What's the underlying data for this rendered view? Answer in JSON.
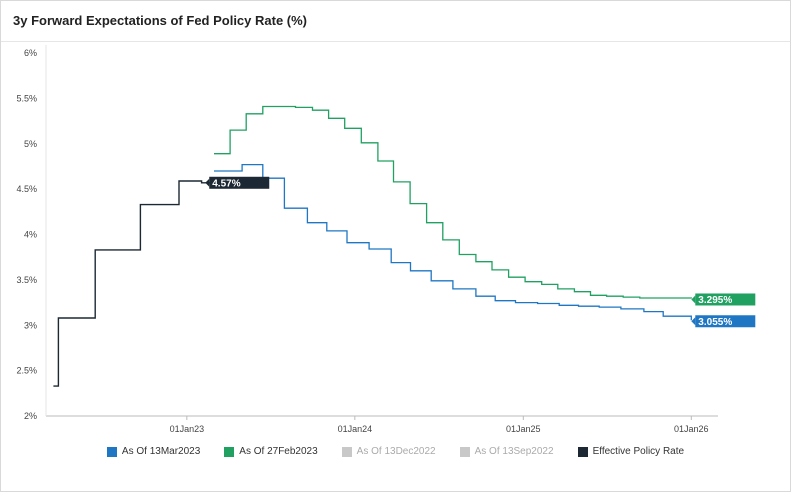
{
  "title": "3y Forward Expectations of Fed Policy Rate (%)",
  "chart_data": {
    "type": "line",
    "step": true,
    "title": "3y Forward Expectations of Fed Policy Rate (%)",
    "xlabel": "",
    "ylabel": "",
    "ylim": [
      2,
      6
    ],
    "yticks": [
      2,
      2.5,
      3,
      3.5,
      4,
      4.5,
      5,
      5.5,
      6
    ],
    "ytick_labels": [
      "2%",
      "2.5%",
      "3%",
      "3.5%",
      "4%",
      "4.5%",
      "5%",
      "5.5%",
      "6%"
    ],
    "xlim": [
      "2022-03-01",
      "2026-02-28"
    ],
    "xticks": [
      "2023-01-01",
      "2024-01-01",
      "2025-01-01",
      "2026-01-01"
    ],
    "xtick_labels": [
      "01Jan23",
      "01Jan24",
      "01Jan25",
      "01Jan26"
    ],
    "grid": false,
    "legend_position": "bottom",
    "series": [
      {
        "name": "As Of 13Mar2023",
        "color": "#1f77c4",
        "end_label": "3.055%",
        "x": [
          "2023-03-01",
          "2023-05-01",
          "2023-06-15",
          "2023-08-01",
          "2023-09-20",
          "2023-11-01",
          "2023-12-15",
          "2024-02-01",
          "2024-03-20",
          "2024-05-01",
          "2024-06-15",
          "2024-08-01",
          "2024-09-20",
          "2024-11-01",
          "2024-12-15",
          "2025-02-01",
          "2025-03-20",
          "2025-05-01",
          "2025-06-15",
          "2025-08-01",
          "2025-09-20",
          "2025-11-01",
          "2026-01-01"
        ],
        "y": [
          4.7,
          4.77,
          4.62,
          4.29,
          4.13,
          4.04,
          3.91,
          3.84,
          3.69,
          3.6,
          3.49,
          3.4,
          3.32,
          3.27,
          3.25,
          3.24,
          3.22,
          3.21,
          3.2,
          3.18,
          3.15,
          3.1,
          3.055
        ]
      },
      {
        "name": "As Of 27Feb2023",
        "color": "#20a162",
        "end_label": "3.295%",
        "x": [
          "2023-03-01",
          "2023-04-05",
          "2023-05-10",
          "2023-06-15",
          "2023-07-20",
          "2023-08-25",
          "2023-10-01",
          "2023-11-05",
          "2023-12-10",
          "2024-01-15",
          "2024-02-20",
          "2024-03-25",
          "2024-04-30",
          "2024-06-05",
          "2024-07-10",
          "2024-08-15",
          "2024-09-20",
          "2024-10-25",
          "2024-11-30",
          "2025-01-05",
          "2025-02-10",
          "2025-03-17",
          "2025-04-22",
          "2025-05-27",
          "2025-07-01",
          "2025-08-06",
          "2025-09-11",
          "2025-10-16",
          "2025-11-21",
          "2026-01-01"
        ],
        "y": [
          4.89,
          5.15,
          5.33,
          5.41,
          5.41,
          5.4,
          5.37,
          5.28,
          5.17,
          5.01,
          4.81,
          4.58,
          4.34,
          4.13,
          3.94,
          3.78,
          3.7,
          3.61,
          3.53,
          3.48,
          3.45,
          3.4,
          3.37,
          3.33,
          3.32,
          3.31,
          3.3,
          3.3,
          3.3,
          3.295
        ]
      },
      {
        "name": "As Of 13Dec2022",
        "color": "#c8c8c8",
        "disabled": true,
        "x": [],
        "y": []
      },
      {
        "name": "As Of 13Sep2022",
        "color": "#c8c8c8",
        "disabled": true,
        "x": [],
        "y": []
      },
      {
        "name": "Effective Policy Rate",
        "color": "#1c2833",
        "end_label": "4.57%",
        "x": [
          "2022-03-17",
          "2022-03-28",
          "2022-05-05",
          "2022-06-16",
          "2022-07-28",
          "2022-09-22",
          "2022-11-03",
          "2022-12-15",
          "2023-02-02"
        ],
        "y": [
          2.33,
          3.08,
          3.08,
          3.83,
          3.83,
          4.33,
          4.33,
          4.59,
          4.57
        ],
        "extend_to": "2023-05-20"
      }
    ]
  }
}
